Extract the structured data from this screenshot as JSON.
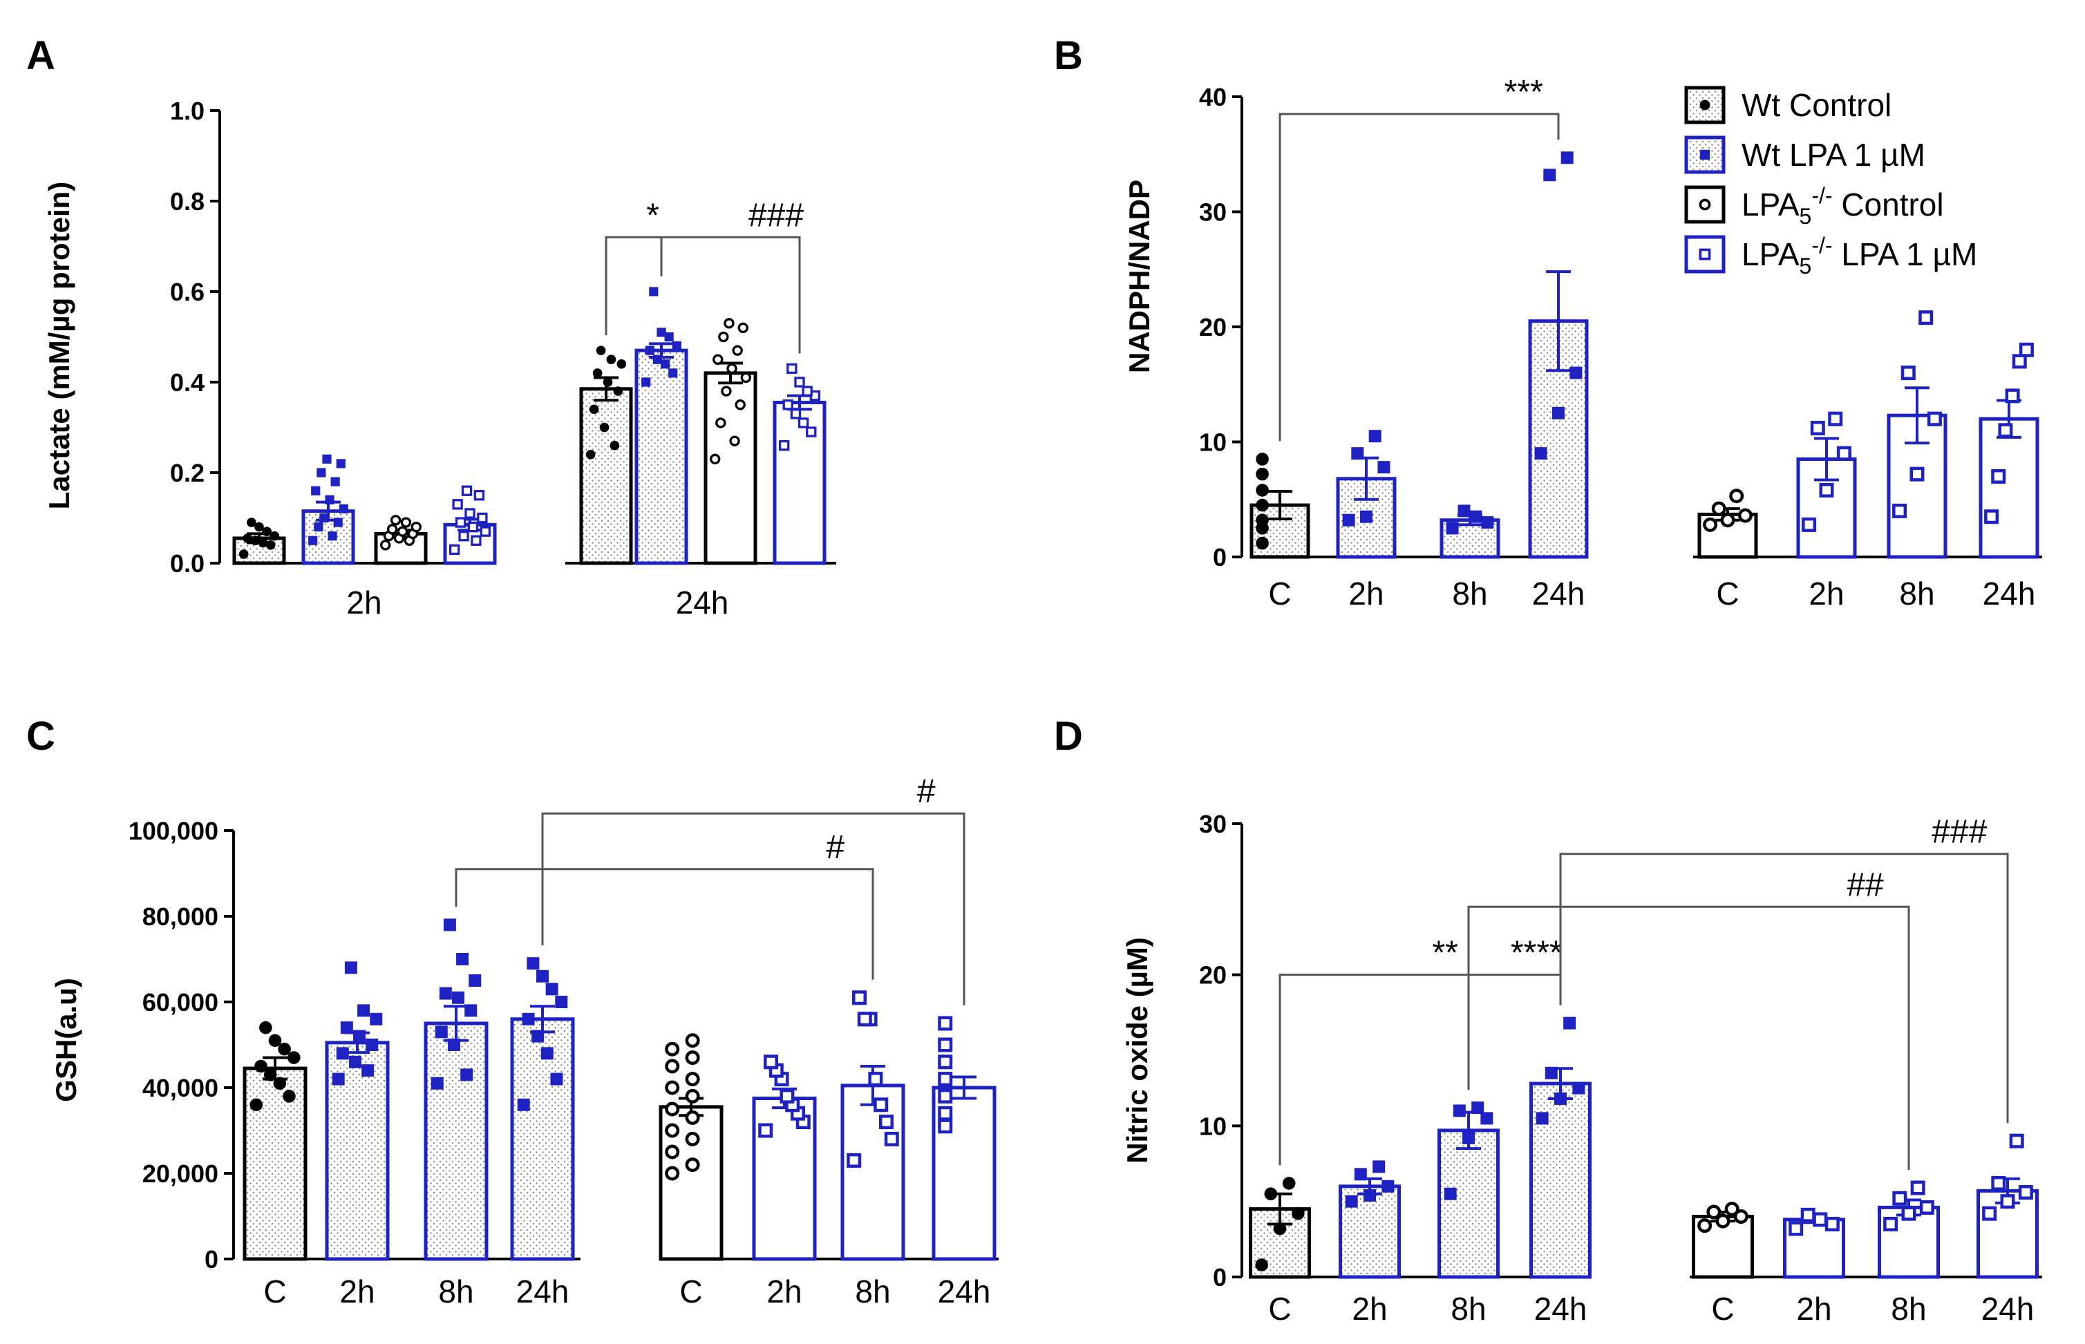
{
  "colors": {
    "wt": "#000000",
    "lpa": "#1f22c2",
    "axis": "#000000"
  },
  "legend": {
    "items": [
      {
        "label": "Wt Control",
        "series": "wt_control"
      },
      {
        "label": "Wt LPA 1 µM",
        "series": "wt_lpa"
      },
      {
        "label": "LPA",
        "sub": "5",
        "sup": "-/-",
        "suffix": " Control",
        "series": "ko_control"
      },
      {
        "label": "LPA",
        "sub": "5",
        "sup": "-/-",
        "suffix": " LPA 1 µM",
        "series": "ko_lpa"
      }
    ]
  },
  "chart_data": [
    {
      "panel": "A",
      "type": "bar",
      "ylabel": "Lactate (mM/µg protein)",
      "ylim": [
        0,
        1.0
      ],
      "yticks": [
        "0.0",
        "0.2",
        "0.4",
        "0.6",
        "0.8",
        "1.0"
      ],
      "yticks_values": [
        0,
        0.2,
        0.4,
        0.6,
        0.8,
        1.0
      ],
      "group_labels": [
        "2h",
        "24h"
      ],
      "bars": [
        {
          "series": "wt_control",
          "group": "2h",
          "value": 0.055,
          "sem": 0.01,
          "points": [
            0.02,
            0.04,
            0.045,
            0.05,
            0.055,
            0.06,
            0.07,
            0.08,
            0.09
          ]
        },
        {
          "series": "wt_lpa",
          "group": "2h",
          "value": 0.115,
          "sem": 0.02,
          "points": [
            0.05,
            0.06,
            0.08,
            0.09,
            0.1,
            0.12,
            0.14,
            0.16,
            0.18,
            0.2,
            0.22,
            0.23
          ]
        },
        {
          "series": "ko_control",
          "group": "2h",
          "value": 0.065,
          "sem": 0.008,
          "points": [
            0.04,
            0.05,
            0.055,
            0.06,
            0.065,
            0.07,
            0.075,
            0.08,
            0.09,
            0.095
          ]
        },
        {
          "series": "ko_lpa",
          "group": "2h",
          "value": 0.085,
          "sem": 0.012,
          "points": [
            0.03,
            0.05,
            0.06,
            0.07,
            0.08,
            0.09,
            0.1,
            0.11,
            0.13,
            0.15,
            0.16
          ]
        },
        {
          "series": "wt_control",
          "group": "24h",
          "value": 0.385,
          "sem": 0.025,
          "points": [
            0.24,
            0.26,
            0.3,
            0.34,
            0.38,
            0.4,
            0.42,
            0.44,
            0.45,
            0.47
          ]
        },
        {
          "series": "wt_lpa",
          "group": "24h",
          "value": 0.47,
          "sem": 0.015,
          "points": [
            0.4,
            0.42,
            0.44,
            0.45,
            0.47,
            0.48,
            0.5,
            0.51,
            0.6
          ]
        },
        {
          "series": "ko_control",
          "group": "24h",
          "value": 0.42,
          "sem": 0.022,
          "points": [
            0.23,
            0.27,
            0.31,
            0.35,
            0.38,
            0.41,
            0.43,
            0.45,
            0.47,
            0.5,
            0.52,
            0.53
          ]
        },
        {
          "series": "ko_lpa",
          "group": "24h",
          "value": 0.355,
          "sem": 0.015,
          "points": [
            0.26,
            0.29,
            0.31,
            0.33,
            0.35,
            0.37,
            0.38,
            0.4,
            0.43
          ]
        }
      ],
      "annotations": [
        {
          "text": "*",
          "from": 4,
          "to": 5,
          "level": 0.72
        },
        {
          "text": "###",
          "from": 5,
          "to": 7,
          "level": 0.72
        }
      ]
    },
    {
      "panel": "B",
      "type": "bar",
      "ylabel": "NADPH/NADP",
      "ylim": [
        0,
        40
      ],
      "yticks": [
        "0",
        "10",
        "20",
        "30",
        "40"
      ],
      "yticks_values": [
        0,
        10,
        20,
        30,
        40
      ],
      "categories": [
        "C",
        "2h",
        "8h",
        "24h",
        "C",
        "2h",
        "8h",
        "24h"
      ],
      "bars": [
        {
          "series": "wt_control",
          "value": 4.5,
          "sem": 1.2,
          "points": [
            1.2,
            2.5,
            3.2,
            4.5,
            5.8,
            7.2,
            8.5
          ]
        },
        {
          "series": "wt_lpa",
          "value": 6.8,
          "sem": 1.8,
          "points": [
            3.2,
            3.5,
            7.8,
            9,
            10.5
          ]
        },
        {
          "series": "wt_lpa",
          "value": 3.2,
          "sem": 0.4,
          "points": [
            2.5,
            3.0,
            3.5,
            4.0
          ]
        },
        {
          "series": "wt_lpa",
          "value": 20.5,
          "sem": 4.3,
          "points": [
            9,
            12.5,
            16,
            33.2,
            34.7
          ]
        },
        {
          "series": "ko_control",
          "value": 3.7,
          "sem": 0.5,
          "points": [
            2.8,
            3.2,
            3.6,
            4.2,
            5.3
          ]
        },
        {
          "series": "ko_lpa",
          "value": 8.5,
          "sem": 1.8,
          "points": [
            2.8,
            5.8,
            9,
            11.2,
            12
          ]
        },
        {
          "series": "ko_lpa",
          "value": 12.3,
          "sem": 2.4,
          "points": [
            4,
            7.2,
            12,
            16,
            20.8
          ]
        },
        {
          "series": "ko_lpa",
          "value": 12.0,
          "sem": 1.6,
          "points": [
            3.5,
            7,
            11,
            14,
            17,
            18
          ]
        }
      ],
      "annotations": [
        {
          "text": "***",
          "from": 0,
          "to": 3,
          "level": 38.5
        }
      ]
    },
    {
      "panel": "C",
      "type": "bar",
      "ylabel": "GSH(a.u)",
      "ylim": [
        0,
        100000
      ],
      "yticks": [
        "0",
        "20,000",
        "40,000",
        "60,000",
        "80,000",
        "100,000"
      ],
      "yticks_values": [
        0,
        20000,
        40000,
        60000,
        80000,
        100000
      ],
      "categories": [
        "C",
        "2h",
        "8h",
        "24h",
        "C",
        "2h",
        "8h",
        "24h"
      ],
      "bars": [
        {
          "series": "wt_control",
          "value": 44500,
          "sem": 2500,
          "points": [
            36000,
            38000,
            41000,
            43000,
            45000,
            47000,
            49000,
            51000,
            54000
          ]
        },
        {
          "series": "wt_lpa",
          "value": 50500,
          "sem": 2300,
          "points": [
            42000,
            44000,
            46000,
            48000,
            50000,
            52000,
            54000,
            56000,
            58000,
            68000
          ]
        },
        {
          "series": "wt_lpa",
          "value": 55000,
          "sem": 4000,
          "points": [
            41000,
            43000,
            50000,
            53000,
            58000,
            61000,
            62000,
            65000,
            70000,
            78000
          ]
        },
        {
          "series": "wt_lpa",
          "value": 56000,
          "sem": 3000,
          "points": [
            36000,
            42000,
            48000,
            52000,
            56000,
            60000,
            63000,
            66000,
            69000
          ]
        },
        {
          "series": "ko_control",
          "value": 35500,
          "sem": 2000,
          "points": [
            20000,
            22000,
            25000,
            28000,
            30000,
            33000,
            35000,
            38000,
            40000,
            42000,
            45000,
            47000,
            49000,
            51000
          ]
        },
        {
          "series": "ko_lpa",
          "value": 37500,
          "sem": 2200,
          "points": [
            30000,
            32000,
            34000,
            36000,
            38000,
            42000,
            44000,
            46000
          ]
        },
        {
          "series": "ko_lpa",
          "value": 40500,
          "sem": 4500,
          "points": [
            23000,
            28000,
            32000,
            36000,
            42000,
            56000,
            56000,
            61000
          ]
        },
        {
          "series": "ko_lpa",
          "value": 40000,
          "sem": 2500,
          "points": [
            31000,
            34000,
            38000,
            42000,
            46000,
            50000,
            55000
          ]
        }
      ],
      "annotations": [
        {
          "text": "#",
          "from": 2,
          "to": 6,
          "level": 91000
        },
        {
          "text": "#",
          "from": 3,
          "to": 7,
          "level": 104000
        }
      ]
    },
    {
      "panel": "D",
      "type": "bar",
      "ylabel": "Nitric oxide (µM)",
      "ylim": [
        0,
        30
      ],
      "yticks": [
        "0",
        "10",
        "20",
        "30"
      ],
      "yticks_values": [
        0,
        10,
        20,
        30
      ],
      "categories": [
        "C",
        "2h",
        "8h",
        "24h",
        "C",
        "2h",
        "8h",
        "24h"
      ],
      "bars": [
        {
          "series": "wt_control",
          "value": 4.5,
          "sem": 1.0,
          "points": [
            0.8,
            3.2,
            4.2,
            5.5,
            6.2
          ]
        },
        {
          "series": "wt_lpa",
          "value": 6.0,
          "sem": 0.5,
          "points": [
            5.0,
            5.4,
            6.0,
            6.8,
            7.3
          ]
        },
        {
          "series": "wt_lpa",
          "value": 9.7,
          "sem": 1.2,
          "points": [
            5.5,
            9.2,
            10.5,
            11.0,
            11.2
          ]
        },
        {
          "series": "wt_lpa",
          "value": 12.8,
          "sem": 1.0,
          "points": [
            10.5,
            11.8,
            12.5,
            13.5,
            16.8
          ]
        },
        {
          "series": "ko_control",
          "value": 4.0,
          "sem": 0.3,
          "points": [
            3.4,
            3.7,
            4.0,
            4.3,
            4.5
          ]
        },
        {
          "series": "ko_lpa",
          "value": 3.8,
          "sem": 0.2,
          "points": [
            3.2,
            3.5,
            3.8,
            4.1
          ]
        },
        {
          "series": "ko_lpa",
          "value": 4.6,
          "sem": 0.5,
          "points": [
            3.5,
            4.2,
            4.6,
            5.2,
            5.9
          ]
        },
        {
          "series": "ko_lpa",
          "value": 5.7,
          "sem": 0.8,
          "points": [
            4.2,
            5.0,
            5.6,
            6.2,
            9.0
          ]
        }
      ],
      "annotations": [
        {
          "text": "**",
          "from": 0,
          "to": 2,
          "level": 20.0
        },
        {
          "text": "****",
          "from": 2,
          "to": 3,
          "level": 20.0
        },
        {
          "text": "##",
          "from": 2,
          "to": 6,
          "level": 24.5
        },
        {
          "text": "###",
          "from": 3,
          "to": 7,
          "level": 28.0
        }
      ]
    }
  ]
}
